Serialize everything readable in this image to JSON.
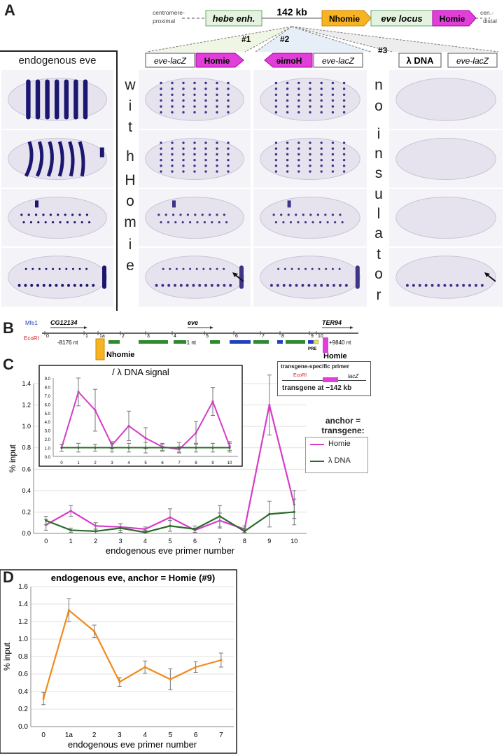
{
  "panel_labels": {
    "a": "A",
    "b": "B",
    "c": "C",
    "d": "D"
  },
  "panel_a": {
    "top_diagram": {
      "left_label_1": "centromere-",
      "left_label_2": "proximal",
      "hebe": "hebe enh.",
      "distance": "142 kb",
      "nhomie": "Nhomie",
      "eve_locus": "eve locus",
      "homie": "Homie",
      "right_label_1": "cen.-",
      "right_label_2": "distal",
      "construct_1_num": "#1",
      "construct_2_num": "#2",
      "construct_3_num": "#3",
      "construct_1_left": "eve-lacZ",
      "construct_1_right": "Homie",
      "construct_2_left": "Homie",
      "construct_2_right": "eve-lacZ",
      "construct_3_left": "λ DNA",
      "construct_3_right": "eve-lacZ"
    },
    "endogenous_title": "endogenous eve",
    "with_homie_letters": [
      "w",
      "i",
      "t",
      "h",
      "H",
      "o",
      "m",
      "i",
      "e"
    ],
    "no_insulator_letters": [
      "n",
      "o",
      "i",
      "n",
      "s",
      "u",
      "l",
      "a",
      "t",
      "o",
      "r"
    ]
  },
  "panel_b": {
    "mfe1": "Mfe1",
    "ecori": "EcoRI",
    "cg": "CG12134",
    "eve": "eve",
    "ter": "TER94",
    "pos_left": "-8176 nt",
    "pos_mid": "+1 nt",
    "pos_right": "+9840 nt",
    "nhomie": "Nhomie",
    "homie": "Homie",
    "pre": "PRE",
    "primer_numbers": [
      "0",
      "1",
      "1a",
      "2",
      "3",
      "4",
      "5",
      "6",
      "7",
      "8",
      "9",
      "10"
    ]
  },
  "panel_c": {
    "inset_title": "/ λ DNA signal",
    "legend_title_1": "anchor =",
    "legend_title_2": "transgene:",
    "primer_box_title": "transgene-specific primer",
    "primer_box_ecori": "EcoRI",
    "primer_box_lacz": "lacZ",
    "primer_box_caption": "transgene at −142 kb"
  },
  "panel_d": {
    "title": "endogenous eve, anchor = Homie (#9)"
  },
  "chart_data": [
    {
      "id": "C-main",
      "type": "line",
      "x": [
        "0",
        "1",
        "2",
        "3",
        "4",
        "5",
        "6",
        "7",
        "8",
        "9",
        "10"
      ],
      "xlabel": "endogenous eve primer number",
      "ylabel": "% input",
      "ylim": [
        0,
        1.4
      ],
      "yticks": [
        "0.0",
        "0.2",
        "0.4",
        "0.6",
        "0.8",
        "1.0",
        "1.2",
        "1.4"
      ],
      "grid": true,
      "legend_position": "right",
      "series": [
        {
          "name": "Homie",
          "color": "#d63cc8",
          "values": [
            0.08,
            0.21,
            0.07,
            0.06,
            0.04,
            0.15,
            0.03,
            0.12,
            0.04,
            1.2,
            0.27
          ],
          "errors": [
            0.05,
            0.05,
            0.03,
            0.03,
            0.02,
            0.08,
            0.02,
            0.07,
            0.03,
            0.28,
            0.13
          ]
        },
        {
          "name": "λ DNA",
          "color": "#2a6b2a",
          "values": [
            0.12,
            0.03,
            0.02,
            0.05,
            0.01,
            0.07,
            0.04,
            0.16,
            0.02,
            0.18,
            0.2
          ],
          "errors": [
            0.04,
            0.02,
            0.02,
            0.04,
            0.02,
            0.05,
            0.03,
            0.1,
            0.03,
            0.12,
            0.12
          ]
        }
      ]
    },
    {
      "id": "C-inset",
      "type": "line",
      "title": "/ λ DNA signal",
      "x": [
        "0",
        "1",
        "2",
        "3",
        "4",
        "5",
        "6",
        "7",
        "8",
        "9",
        "10"
      ],
      "ylim": [
        0,
        9
      ],
      "yticks": [
        "0.0",
        "1.0",
        "2.0",
        "3.0",
        "4.0",
        "5.0",
        "6.0",
        "7.0",
        "8.0",
        "9.0"
      ],
      "series": [
        {
          "name": "Homie",
          "color": "#d63cc8",
          "values": [
            1.0,
            7.4,
            5.3,
            1.3,
            3.5,
            2.1,
            1.1,
            0.8,
            2.7,
            6.3,
            1.2
          ],
          "errors": [
            0.4,
            1.6,
            2.4,
            0.4,
            1.7,
            1.2,
            0.4,
            0.3,
            1.3,
            1.6,
            0.5
          ]
        },
        {
          "name": "λ DNA",
          "color": "#2a6b2a",
          "values": [
            1,
            1,
            1,
            1,
            1,
            1,
            1,
            1,
            1,
            1,
            1
          ],
          "errors": [
            0.4,
            0.5,
            0.4,
            0.5,
            0.5,
            0.6,
            0.4,
            0.6,
            0.5,
            0.5,
            0.5
          ]
        }
      ]
    },
    {
      "id": "D",
      "type": "line",
      "title": "endogenous eve, anchor = Homie (#9)",
      "x": [
        "0",
        "1a",
        "2",
        "3",
        "4",
        "5",
        "6",
        "7"
      ],
      "xlabel": "endogenous eve primer number",
      "ylabel": "% input",
      "ylim": [
        0,
        1.6
      ],
      "yticks": [
        "0.0",
        "0.2",
        "0.4",
        "0.6",
        "0.8",
        "1.0",
        "1.2",
        "1.4",
        "1.6"
      ],
      "grid": true,
      "series": [
        {
          "name": "",
          "color": "#f08a1a",
          "values": [
            0.32,
            1.33,
            1.09,
            0.51,
            0.68,
            0.54,
            0.68,
            0.76
          ],
          "errors": [
            0.07,
            0.13,
            0.07,
            0.05,
            0.07,
            0.12,
            0.06,
            0.08
          ]
        }
      ]
    }
  ]
}
